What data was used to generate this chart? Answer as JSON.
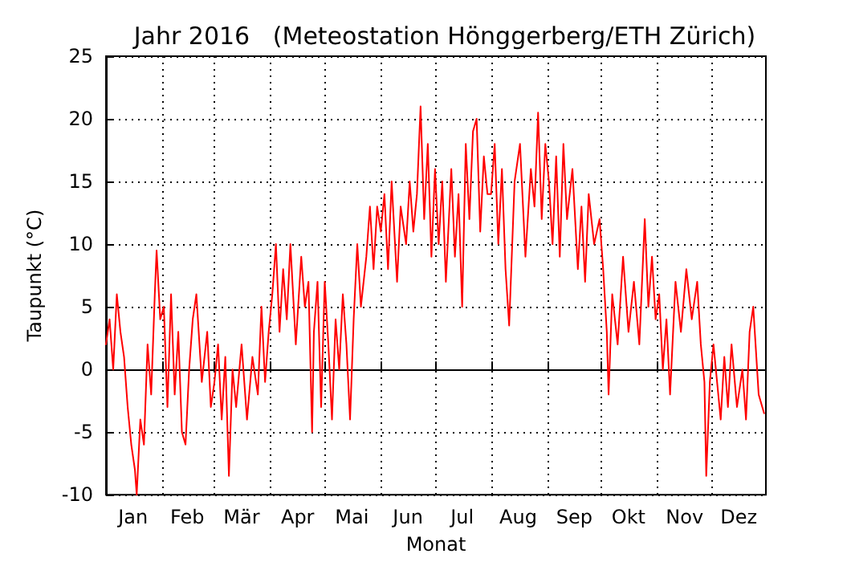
{
  "chart_data": {
    "type": "line",
    "title": "Jahr 2016   (Meteostation Hönggerberg/ETH Zürich)",
    "xlabel": "Monat",
    "ylabel": "Taupunkt (°C)",
    "xlim": [
      "2016-01-01",
      "2016-12-31"
    ],
    "ylim": [
      -10,
      25
    ],
    "yticks": [
      -10,
      -5,
      0,
      5,
      10,
      15,
      20,
      25
    ],
    "xticks": [
      {
        "value": "2016-01-01",
        "label": null
      },
      {
        "value": "2016-01-16",
        "label": "Jan"
      },
      {
        "value": "2016-02-01",
        "label": null
      },
      {
        "value": "2016-02-15",
        "label": "Feb"
      },
      {
        "value": "2016-03-01",
        "label": null
      },
      {
        "value": "2016-03-16",
        "label": "Mär"
      },
      {
        "value": "2016-04-01",
        "label": null
      },
      {
        "value": "2016-04-16",
        "label": "Apr"
      },
      {
        "value": "2016-05-01",
        "label": null
      },
      {
        "value": "2016-05-16",
        "label": "Mai"
      },
      {
        "value": "2016-06-01",
        "label": null
      },
      {
        "value": "2016-06-16",
        "label": "Jun"
      },
      {
        "value": "2016-07-01",
        "label": null
      },
      {
        "value": "2016-07-16",
        "label": "Jul"
      },
      {
        "value": "2016-08-01",
        "label": null
      },
      {
        "value": "2016-08-16",
        "label": "Aug"
      },
      {
        "value": "2016-09-01",
        "label": null
      },
      {
        "value": "2016-09-16",
        "label": "Sep"
      },
      {
        "value": "2016-10-01",
        "label": null
      },
      {
        "value": "2016-10-16",
        "label": "Okt"
      },
      {
        "value": "2016-11-01",
        "label": null
      },
      {
        "value": "2016-11-16",
        "label": "Nov"
      },
      {
        "value": "2016-12-01",
        "label": null
      },
      {
        "value": "2016-12-16",
        "label": "Dez"
      }
    ],
    "grid": true,
    "line_style": "solid",
    "marker": "none",
    "series": [
      {
        "color": "#ff0000",
        "x": [
          "2016-01-01",
          "2016-01-03",
          "2016-01-05",
          "2016-01-07",
          "2016-01-09",
          "2016-01-11",
          "2016-01-13",
          "2016-01-15",
          "2016-01-17",
          "2016-01-18",
          "2016-01-20",
          "2016-01-22",
          "2016-01-24",
          "2016-01-26",
          "2016-01-28",
          "2016-01-29",
          "2016-01-31",
          "2016-02-02",
          "2016-02-04",
          "2016-02-06",
          "2016-02-08",
          "2016-02-10",
          "2016-02-12",
          "2016-02-14",
          "2016-02-16",
          "2016-02-18",
          "2016-02-20",
          "2016-02-23",
          "2016-02-26",
          "2016-02-28",
          "2016-03-01",
          "2016-03-03",
          "2016-03-05",
          "2016-03-07",
          "2016-03-09",
          "2016-03-11",
          "2016-03-13",
          "2016-03-16",
          "2016-03-19",
          "2016-03-22",
          "2016-03-25",
          "2016-03-27",
          "2016-03-29",
          "2016-03-31",
          "2016-04-02",
          "2016-04-04",
          "2016-04-06",
          "2016-04-08",
          "2016-04-10",
          "2016-04-12",
          "2016-04-15",
          "2016-04-18",
          "2016-04-20",
          "2016-04-22",
          "2016-04-24",
          "2016-04-25",
          "2016-04-27",
          "2016-04-29",
          "2016-05-01",
          "2016-05-03",
          "2016-05-05",
          "2016-05-07",
          "2016-05-09",
          "2016-05-11",
          "2016-05-13",
          "2016-05-15",
          "2016-05-17",
          "2016-05-19",
          "2016-05-21",
          "2016-05-24",
          "2016-05-26",
          "2016-05-28",
          "2016-05-30",
          "2016-06-01",
          "2016-06-03",
          "2016-06-05",
          "2016-06-07",
          "2016-06-10",
          "2016-06-12",
          "2016-06-15",
          "2016-06-17",
          "2016-06-19",
          "2016-06-21",
          "2016-06-23",
          "2016-06-25",
          "2016-06-27",
          "2016-06-29",
          "2016-07-01",
          "2016-07-03",
          "2016-07-05",
          "2016-07-07",
          "2016-07-10",
          "2016-07-12",
          "2016-07-14",
          "2016-07-16",
          "2016-07-18",
          "2016-07-20",
          "2016-07-22",
          "2016-07-24",
          "2016-07-26",
          "2016-07-28",
          "2016-07-30",
          "2016-08-01",
          "2016-08-03",
          "2016-08-05",
          "2016-08-07",
          "2016-08-09",
          "2016-08-11",
          "2016-08-14",
          "2016-08-17",
          "2016-08-20",
          "2016-08-23",
          "2016-08-25",
          "2016-08-27",
          "2016-08-29",
          "2016-08-31",
          "2016-09-02",
          "2016-09-04",
          "2016-09-06",
          "2016-09-08",
          "2016-09-10",
          "2016-09-12",
          "2016-09-15",
          "2016-09-18",
          "2016-09-20",
          "2016-09-22",
          "2016-09-24",
          "2016-09-27",
          "2016-09-30",
          "2016-10-02",
          "2016-10-04",
          "2016-10-05",
          "2016-10-07",
          "2016-10-10",
          "2016-10-13",
          "2016-10-16",
          "2016-10-19",
          "2016-10-22",
          "2016-10-25",
          "2016-10-27",
          "2016-10-29",
          "2016-10-31",
          "2016-11-02",
          "2016-11-04",
          "2016-11-06",
          "2016-11-08",
          "2016-11-11",
          "2016-11-14",
          "2016-11-17",
          "2016-11-20",
          "2016-11-23",
          "2016-11-25",
          "2016-11-27",
          "2016-11-28",
          "2016-11-30",
          "2016-12-02",
          "2016-12-04",
          "2016-12-06",
          "2016-12-08",
          "2016-12-10",
          "2016-12-12",
          "2016-12-15",
          "2016-12-18",
          "2016-12-20",
          "2016-12-22",
          "2016-12-24",
          "2016-12-27",
          "2016-12-30"
        ],
        "values": [
          2,
          4,
          0,
          6,
          3,
          1,
          -3,
          -6,
          -8,
          -10,
          -4,
          -6,
          2,
          -2,
          6,
          9.5,
          4,
          5,
          -3,
          6,
          -2,
          3,
          -5,
          -6,
          0,
          4,
          6,
          -1,
          3,
          -3,
          -1,
          2,
          -4,
          1,
          -8.5,
          0,
          -3,
          2,
          -4,
          1,
          -2,
          5,
          -1,
          3,
          6,
          10,
          3,
          8,
          4,
          10,
          2,
          9,
          5,
          7,
          -5,
          3,
          7,
          -3,
          7,
          2,
          -4,
          4,
          0,
          6,
          2,
          -4,
          4,
          10,
          5,
          9,
          13,
          8,
          13,
          11,
          14,
          8,
          15,
          7,
          13,
          10,
          15,
          11,
          14,
          21,
          12,
          18,
          9,
          16,
          10,
          15,
          7,
          16,
          9,
          14,
          5,
          18,
          12,
          19,
          20,
          11,
          17,
          14,
          14,
          18,
          10,
          16,
          8,
          3.5,
          15,
          18,
          9,
          16,
          13,
          20.5,
          12,
          18,
          15,
          10,
          17,
          9,
          18,
          12,
          16,
          8,
          13,
          7,
          14,
          10,
          12,
          8,
          3,
          -2,
          6,
          2,
          9,
          3,
          7,
          2,
          12,
          5,
          9,
          4,
          6,
          0,
          4,
          -2,
          7,
          3,
          8,
          4,
          7,
          2,
          -1,
          -8.5,
          -1,
          2,
          -1,
          -4,
          1,
          -3,
          2,
          -3,
          0,
          -4,
          3,
          5,
          -2,
          -3.5
        ]
      }
    ]
  }
}
